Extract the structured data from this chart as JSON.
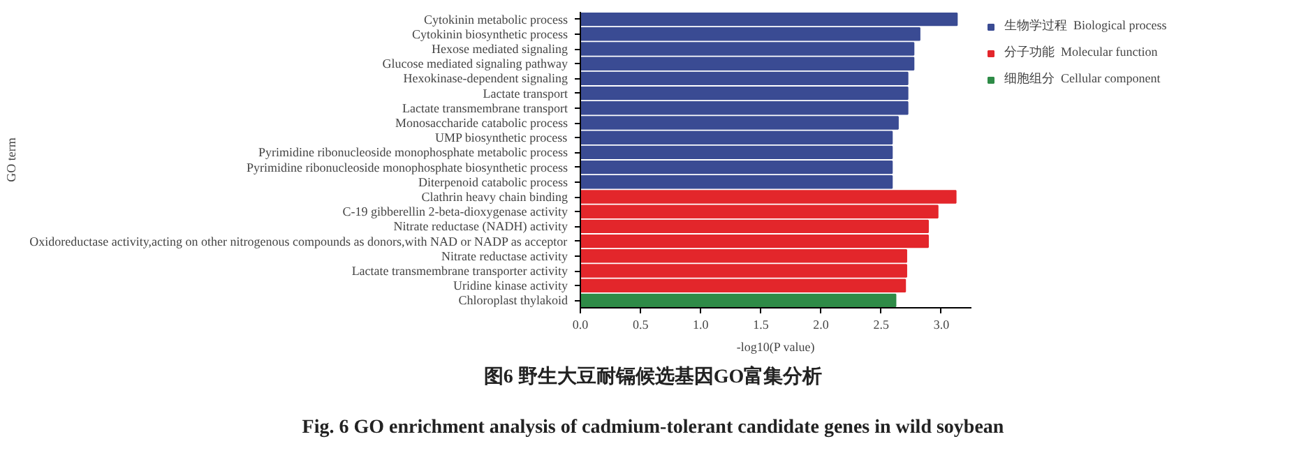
{
  "chart_data": {
    "type": "bar",
    "orientation": "horizontal",
    "title": "图6   野生大豆耐镉候选基因GO富集分析",
    "subtitle": "Fig. 6   GO enrichment analysis of cadmium-tolerant candidate genes in wild soybean",
    "xlabel": "-log10(P value)",
    "ylabel": "GO term",
    "categories": [
      "Cytokinin metabolic process",
      "Cytokinin biosynthetic process",
      "Hexose mediated signaling",
      "Glucose mediated signaling pathway",
      "Hexokinase-dependent signaling",
      "Lactate transport",
      "Lactate transmembrane transport",
      "Monosaccharide catabolic process",
      "UMP biosynthetic process",
      "Pyrimidine ribonucleoside monophosphate metabolic process",
      "Pyrimidine ribonucleoside monophosphate biosynthetic process",
      "Diterpenoid catabolic process",
      "Clathrin heavy chain binding",
      "C-19 gibberellin 2-beta-dioxygenase activity",
      "Nitrate reductase (NADH) activity",
      "Oxidoreductase activity,acting on other nitrogenous compounds as donors,with NAD or NADP as acceptor",
      "Nitrate reductase activity",
      "Lactate transmembrane transporter activity",
      "Uridine kinase activity",
      "Chloroplast thylakoid"
    ],
    "series": [
      {
        "name": "生物学过程  Biological process",
        "color": "#3a4b93",
        "values": [
          3.13,
          2.82,
          2.77,
          2.77,
          2.72,
          2.72,
          2.72,
          2.64,
          2.59,
          2.59,
          2.59,
          2.59,
          null,
          null,
          null,
          null,
          null,
          null,
          null,
          null
        ]
      },
      {
        "name": "分子功能  Molecular function",
        "color": "#e3262b",
        "values": [
          null,
          null,
          null,
          null,
          null,
          null,
          null,
          null,
          null,
          null,
          null,
          null,
          3.12,
          2.97,
          2.89,
          2.89,
          2.71,
          2.71,
          2.7,
          null
        ]
      },
      {
        "name": "细胞组分  Cellular component",
        "color": "#2e8b47",
        "values": [
          null,
          null,
          null,
          null,
          null,
          null,
          null,
          null,
          null,
          null,
          null,
          null,
          null,
          null,
          null,
          null,
          null,
          null,
          null,
          2.62
        ]
      }
    ],
    "xlim": [
      0,
      3.25
    ],
    "xticks": [
      {
        "value": 0,
        "label": "0.0"
      },
      {
        "value": 0.5,
        "label": "0.5"
      },
      {
        "value": 1,
        "label": "1.0"
      },
      {
        "value": 1.5,
        "label": "1.5"
      },
      {
        "value": 2,
        "label": "2.0"
      },
      {
        "value": 2.5,
        "label": "2.5"
      },
      {
        "value": 3,
        "label": "3.0"
      }
    ],
    "grid": false,
    "legend": "right"
  }
}
